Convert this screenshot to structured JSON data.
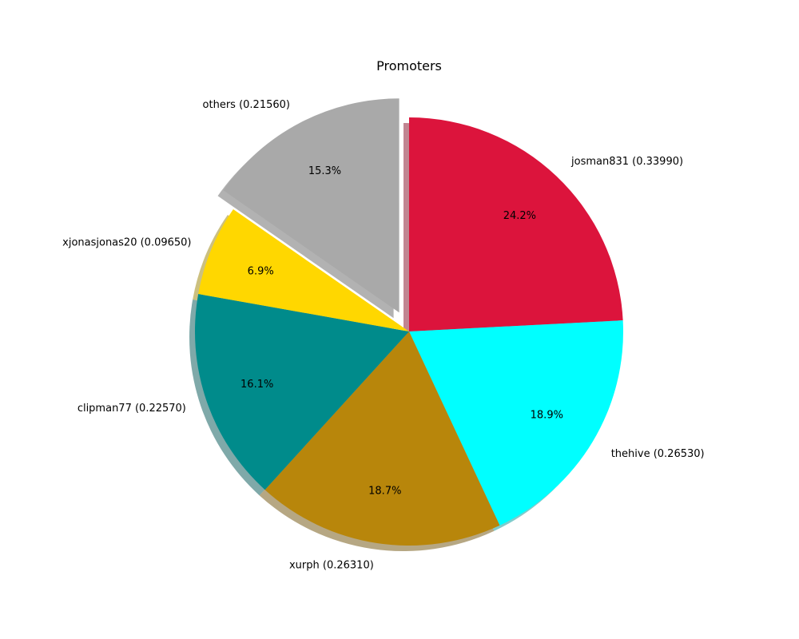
{
  "chart_data": {
    "type": "pie",
    "title": "Promoters",
    "slices": [
      {
        "label": "josman831 (0.33990)",
        "value": 0.3399,
        "percent_label": "24.2%",
        "color": "#dc143c",
        "explode": false
      },
      {
        "label": "thehive (0.26530)",
        "value": 0.2653,
        "percent_label": "18.9%",
        "color": "#00ffff",
        "explode": false
      },
      {
        "label": "xurph (0.26310)",
        "value": 0.2631,
        "percent_label": "18.7%",
        "color": "#b8860b",
        "explode": false
      },
      {
        "label": "clipman77 (0.22570)",
        "value": 0.2257,
        "percent_label": "16.1%",
        "color": "#008b8b",
        "explode": false
      },
      {
        "label": "xjonasjonas20 (0.09650)",
        "value": 0.0965,
        "percent_label": "6.9%",
        "color": "#ffd700",
        "explode": false
      },
      {
        "label": "others (0.21560)",
        "value": 0.2156,
        "percent_label": "15.3%",
        "color": "#a9a9a9",
        "explode": true
      }
    ],
    "start_angle": "top",
    "direction": "clockwise",
    "shadow": true,
    "legend": "none"
  }
}
